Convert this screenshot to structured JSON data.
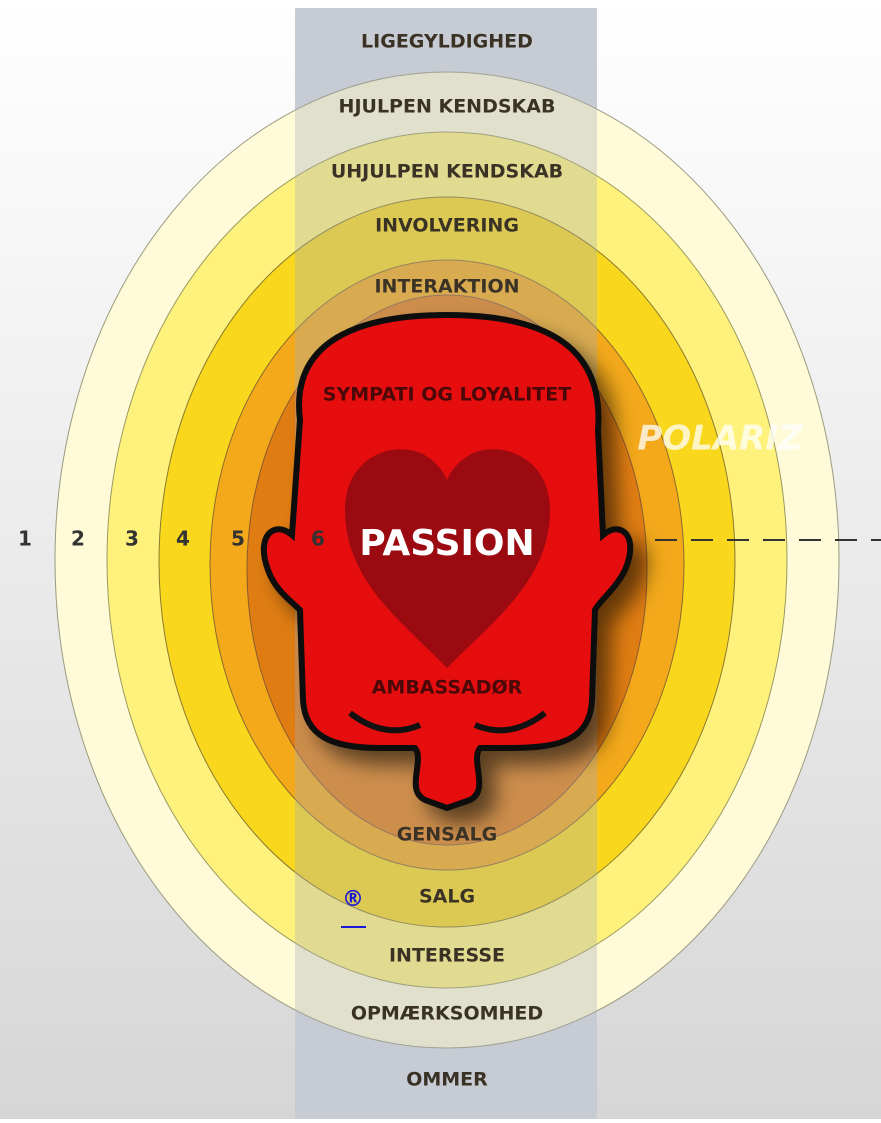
{
  "labels_top": [
    "LIGEGYLDIGHED",
    "HJULPEN KENDSKAB",
    "UHJULPEN KENDSKAB",
    "INVOLVERING",
    "INTERAKTION"
  ],
  "center": {
    "upper": "SYMPATI OG LOYALITET",
    "main": "PASSION",
    "lower": "AMBASSADØR"
  },
  "labels_bottom": [
    "GENSALG",
    "SALG",
    "INTERESSE",
    "OPMÆRKSOMHED",
    "OMMER"
  ],
  "ring_numbers": [
    "1",
    "2",
    "3",
    "4",
    "5",
    "6"
  ],
  "watermark": "POLARIZ",
  "link": "®"
}
